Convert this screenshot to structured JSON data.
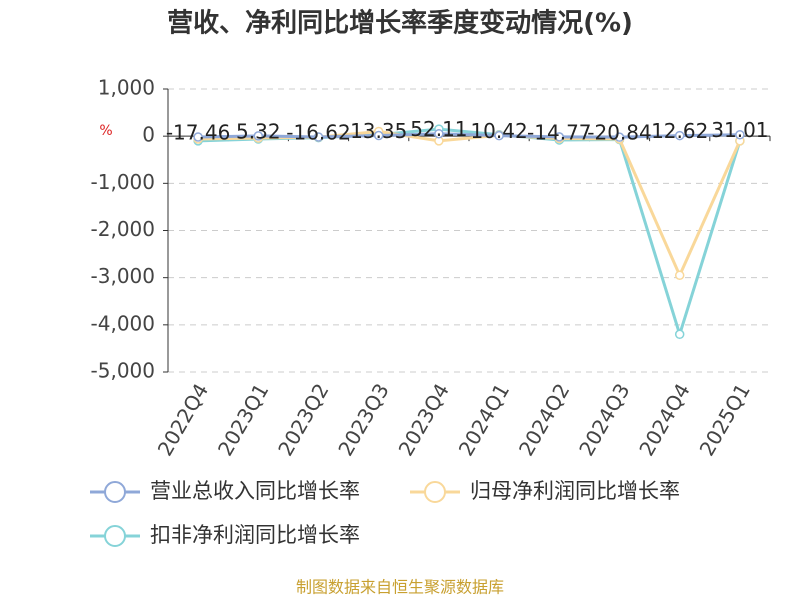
{
  "chart_data": {
    "type": "line",
    "title": "营收、净利同比增长率季度变动情况(%)",
    "y_label": "%",
    "categories": [
      "2022Q4",
      "2023Q1",
      "2023Q2",
      "2023Q3",
      "2023Q4",
      "2024Q1",
      "2024Q2",
      "2024Q3",
      "2024Q4",
      "2025Q1"
    ],
    "series": [
      {
        "name": "营业总收入同比增长率",
        "color": "#8fa8d8",
        "values": [
          -17.46,
          5.32,
          -16.62,
          13.35,
          52.11,
          10.42,
          -14.77,
          -20.84,
          12.62,
          31.01
        ]
      },
      {
        "name": "归母净利润同比增长率",
        "color": "#f9d89a",
        "values": [
          -60,
          -40,
          -20,
          100,
          -100,
          20,
          -50,
          -60,
          -2950,
          -100
        ]
      },
      {
        "name": "扣非净利润同比增长率",
        "color": "#85d3d8",
        "values": [
          -100,
          -60,
          -30,
          30,
          150,
          30,
          -80,
          -70,
          -4200,
          -100
        ]
      }
    ],
    "ylim": [
      -5000,
      1000
    ],
    "yticks": [
      {
        "value": 1000,
        "label": "1,000"
      },
      0,
      {
        "value": -1000,
        "label": "-1,000"
      },
      {
        "value": -2000,
        "label": "-2,000"
      },
      {
        "value": -3000,
        "label": "-3,000"
      },
      {
        "value": -4000,
        "label": "-4,000"
      },
      {
        "value": -5000,
        "label": "-5,000"
      }
    ],
    "grid": true,
    "source": "制图数据来自恒生聚源数据库"
  }
}
